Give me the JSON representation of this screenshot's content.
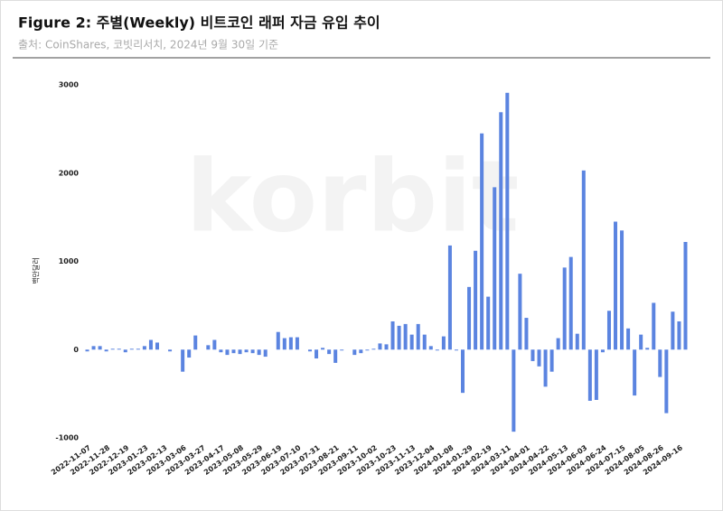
{
  "chart_data": {
    "type": "bar",
    "title": "Figure 2: 주별(Weekly) 비트코인 래퍼 자금 유입 추이",
    "subtitle": "출처: CoinShares, 코빗리서치, 2024년 9월 30일 기준",
    "y_label": "백만달러",
    "watermark": "korbit",
    "color": "#5b84e0",
    "ylim": [
      -1000,
      3000
    ],
    "yticks": [
      -1000,
      0,
      1000,
      2000,
      3000
    ],
    "grid": false,
    "categories": [
      "2022-11-07",
      null,
      null,
      "2022-11-28",
      null,
      null,
      "2022-12-19",
      null,
      null,
      "2023-01-23",
      null,
      null,
      "2023-02-13",
      null,
      null,
      "2023-03-06",
      null,
      null,
      "2023-03-27",
      null,
      null,
      "2023-04-17",
      null,
      null,
      "2023-05-08",
      null,
      null,
      "2023-05-29",
      null,
      null,
      "2023-06-19",
      null,
      null,
      "2023-07-10",
      null,
      null,
      "2023-07-31",
      null,
      null,
      "2023-08-21",
      null,
      null,
      "2023-09-11",
      null,
      null,
      "2023-10-02",
      null,
      null,
      "2023-10-23",
      null,
      null,
      "2023-11-13",
      null,
      null,
      "2023-12-04",
      null,
      null,
      "2024-01-08",
      null,
      null,
      "2024-01-29",
      null,
      null,
      "2024-02-19",
      null,
      null,
      "2024-03-11",
      null,
      null,
      "2024-04-01",
      null,
      null,
      "2024-04-22",
      null,
      null,
      "2024-05-13",
      null,
      null,
      "2024-06-03",
      null,
      null,
      "2024-06-24",
      null,
      null,
      "2024-07-15",
      null,
      null,
      "2024-08-05",
      null,
      null,
      "2024-08-26",
      null,
      null,
      "2024-09-16",
      null
    ],
    "values": [
      -20,
      40,
      40,
      -20,
      10,
      10,
      -30,
      10,
      10,
      40,
      110,
      80,
      0,
      -20,
      0,
      -250,
      -90,
      160,
      0,
      50,
      110,
      -30,
      -60,
      -40,
      -50,
      -30,
      -40,
      -60,
      -80,
      0,
      200,
      130,
      140,
      140,
      0,
      -20,
      -100,
      20,
      -50,
      -150,
      -10,
      0,
      -60,
      -40,
      -10,
      10,
      70,
      60,
      320,
      270,
      290,
      170,
      290,
      170,
      40,
      -10,
      150,
      1180,
      -10,
      -490,
      710,
      1120,
      2450,
      600,
      1840,
      2690,
      2910,
      -930,
      860,
      360,
      -130,
      -190,
      -420,
      -250,
      130,
      930,
      1050,
      180,
      2030,
      -580,
      -570,
      -30,
      440,
      1450,
      1350,
      240,
      -520,
      170,
      20,
      530,
      -310,
      -720,
      430,
      320,
      1220
    ]
  }
}
